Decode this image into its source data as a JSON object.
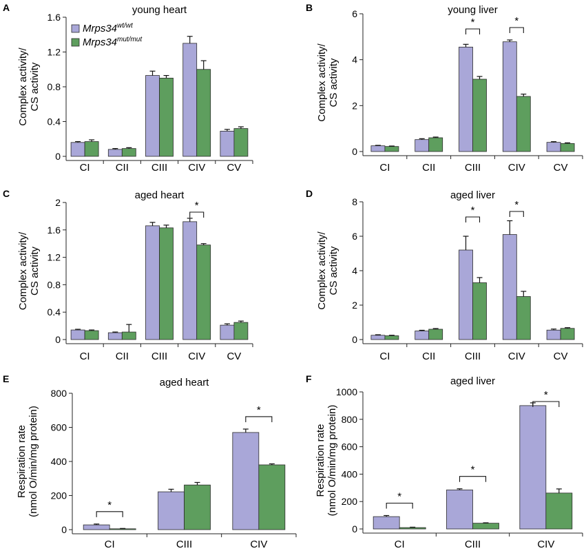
{
  "colors": {
    "wt": "#a9a7d8",
    "mut": "#5e9e5e",
    "axis": "#222222"
  },
  "legend": [
    {
      "base": "Mrps34",
      "sup": "wt/wt"
    },
    {
      "base": "Mrps34",
      "sup": "mut/mut"
    }
  ],
  "chart_data": [
    {
      "type": "bar",
      "letter": "A",
      "title": "young heart",
      "ylabel": [
        "Complex activity/",
        "CS activity"
      ],
      "categories": [
        "CI",
        "CII",
        "CIII",
        "CIV",
        "CV"
      ],
      "ylim": [
        0,
        1.6
      ],
      "yticks": [
        "0",
        "0.4",
        "0.8",
        "1.2",
        "1.6"
      ],
      "series": [
        {
          "values": [
            0.16,
            0.08,
            0.93,
            1.3,
            0.29
          ],
          "err": [
            0.01,
            0.01,
            0.05,
            0.08,
            0.02
          ]
        },
        {
          "values": [
            0.17,
            0.09,
            0.9,
            1.0,
            0.32
          ],
          "err": [
            0.02,
            0.01,
            0.03,
            0.1,
            0.02
          ]
        }
      ],
      "significance": [],
      "legend": true
    },
    {
      "type": "bar",
      "letter": "B",
      "title": "young liver",
      "ylabel": [
        "Complex activity/",
        "CS activity"
      ],
      "categories": [
        "CI",
        "CII",
        "CIII",
        "CIV",
        "CV"
      ],
      "ylim": [
        0,
        6
      ],
      "yticks": [
        "0",
        "2",
        "4",
        "6"
      ],
      "series": [
        {
          "values": [
            0.25,
            0.52,
            4.55,
            4.78,
            0.4
          ],
          "err": [
            0.02,
            0.04,
            0.12,
            0.08,
            0.03
          ]
        },
        {
          "values": [
            0.22,
            0.6,
            3.15,
            2.4,
            0.35
          ],
          "err": [
            0.02,
            0.03,
            0.12,
            0.1,
            0.03
          ]
        }
      ],
      "significance": [
        {
          "category": 2,
          "label": "*"
        },
        {
          "category": 3,
          "label": "*"
        }
      ]
    },
    {
      "type": "bar",
      "letter": "C",
      "title": "aged heart",
      "ylabel": [
        "Complex activity/",
        "CS activity"
      ],
      "categories": [
        "CI",
        "CII",
        "CIII",
        "CIV",
        "CV"
      ],
      "ylim": [
        0,
        2
      ],
      "yticks": [
        "0",
        "0.4",
        "0.8",
        "1.2",
        "1.6",
        "2"
      ],
      "series": [
        {
          "values": [
            0.14,
            0.1,
            1.66,
            1.72,
            0.21
          ],
          "err": [
            0.01,
            0.01,
            0.05,
            0.05,
            0.02
          ]
        },
        {
          "values": [
            0.13,
            0.11,
            1.63,
            1.38,
            0.25
          ],
          "err": [
            0.01,
            0.11,
            0.04,
            0.02,
            0.02
          ]
        }
      ],
      "significance": [
        {
          "category": 3,
          "label": "*"
        }
      ]
    },
    {
      "type": "bar",
      "letter": "D",
      "title": "aged liver",
      "ylabel": [
        "Complex activity/",
        "CS activity"
      ],
      "categories": [
        "CI",
        "CII",
        "CIII",
        "CIV",
        "CV"
      ],
      "ylim": [
        0,
        8
      ],
      "yticks": [
        "0",
        "2",
        "4",
        "6",
        "8"
      ],
      "series": [
        {
          "values": [
            0.25,
            0.5,
            5.2,
            6.1,
            0.55
          ],
          "err": [
            0.03,
            0.04,
            0.8,
            0.8,
            0.06
          ]
        },
        {
          "values": [
            0.22,
            0.6,
            3.3,
            2.5,
            0.65
          ],
          "err": [
            0.03,
            0.04,
            0.3,
            0.3,
            0.04
          ]
        }
      ],
      "significance": [
        {
          "category": 2,
          "label": "*"
        },
        {
          "category": 3,
          "label": "*"
        }
      ]
    },
    {
      "type": "bar",
      "letter": "E",
      "title": "aged heart",
      "ylabel": [
        "Respiration rate",
        "(nmol O/min/mg protein)"
      ],
      "categories": [
        "CI",
        "CIII",
        "CIV"
      ],
      "ylim": [
        0,
        800
      ],
      "yticks": [
        "0",
        "200",
        "400",
        "600",
        "800"
      ],
      "series": [
        {
          "values": [
            28,
            222,
            570
          ],
          "err": [
            5,
            15,
            20
          ]
        },
        {
          "values": [
            5,
            262,
            380
          ],
          "err": [
            2,
            15,
            6
          ]
        }
      ],
      "significance": [
        {
          "category": 0,
          "label": "*"
        },
        {
          "category": 2,
          "label": "*"
        }
      ]
    },
    {
      "type": "bar",
      "letter": "F",
      "title": "aged liver",
      "ylabel": [
        "Respiration rate",
        "(nmol O/min/mg protein)"
      ],
      "categories": [
        "CI",
        "CIII",
        "CIV"
      ],
      "ylim": [
        0,
        1000
      ],
      "yticks": [
        "0",
        "200",
        "400",
        "600",
        "800",
        "1000"
      ],
      "series": [
        {
          "values": [
            90,
            285,
            900
          ],
          "err": [
            8,
            8,
            20
          ]
        },
        {
          "values": [
            10,
            42,
            262
          ],
          "err": [
            3,
            3,
            30
          ]
        }
      ],
      "significance": [
        {
          "category": 0,
          "label": "*"
        },
        {
          "category": 1,
          "label": "*"
        },
        {
          "category": 2,
          "label": "*"
        }
      ]
    }
  ]
}
